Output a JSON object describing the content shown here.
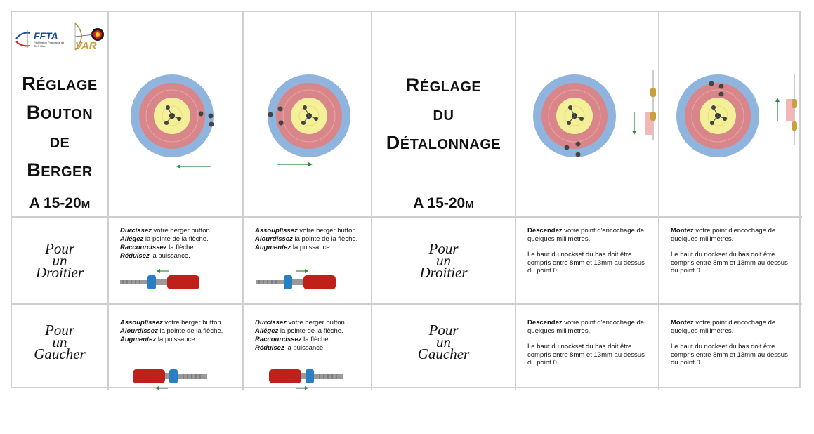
{
  "logos": {
    "ffta_text": "FFTA",
    "ffta_subtitle": "Fédération Française de Tir à l'Arc",
    "var_text": "VAR"
  },
  "section1": {
    "title_lines": [
      [
        "R",
        "ÉGLAGE"
      ],
      [
        "B",
        "OUTON"
      ],
      [
        "",
        "DE"
      ],
      [
        "B",
        "ERGER"
      ]
    ],
    "distance_main": "A 15-20",
    "distance_unit": "M"
  },
  "section2": {
    "title_lines": [
      [
        "R",
        "ÉGLAGE"
      ],
      [
        "",
        "DU"
      ],
      [
        "D",
        "ÉTALONNAGE"
      ]
    ],
    "distance_main": "A 15-20",
    "distance_unit": "M"
  },
  "rows": {
    "droitier": [
      "Pour",
      "un",
      "Droitier"
    ],
    "gaucher": [
      "Pour",
      "un",
      "Gaucher"
    ]
  },
  "berger": {
    "stiffen": [
      {
        "bold": "Durcissez",
        "rest": " votre berger button."
      },
      {
        "bold": "Allégez",
        "rest": " la pointe de la flèche."
      },
      {
        "bold": "Raccourcissez",
        "rest": " la flèche."
      },
      {
        "bold": "Réduisez",
        "rest": " la puissance."
      }
    ],
    "soften": [
      {
        "bold": "Assouplissez",
        "rest": " votre berger button."
      },
      {
        "bold": "Alourdissez",
        "rest": " la pointe de la flèche."
      },
      {
        "bold": "Augmentez",
        "rest": " la puissance."
      }
    ]
  },
  "detalonnage": {
    "down": {
      "bold": "Descendez",
      "rest": " votre point d'encochage de quelques millimètres."
    },
    "up": {
      "bold": "Montez",
      "rest": " votre point d'encochage de quelques millimètres."
    },
    "note": "Le haut du nockset du bas doit être compris entre 8mm et 13mm au dessus du point 0."
  },
  "colors": {
    "arrow_green": "#2e8b3a",
    "button_red": "#c0201a",
    "button_blue": "#2a7fc4",
    "target_blue": "#8fb4de",
    "target_red": "#d9868a",
    "target_yellow": "#f4f09a"
  }
}
